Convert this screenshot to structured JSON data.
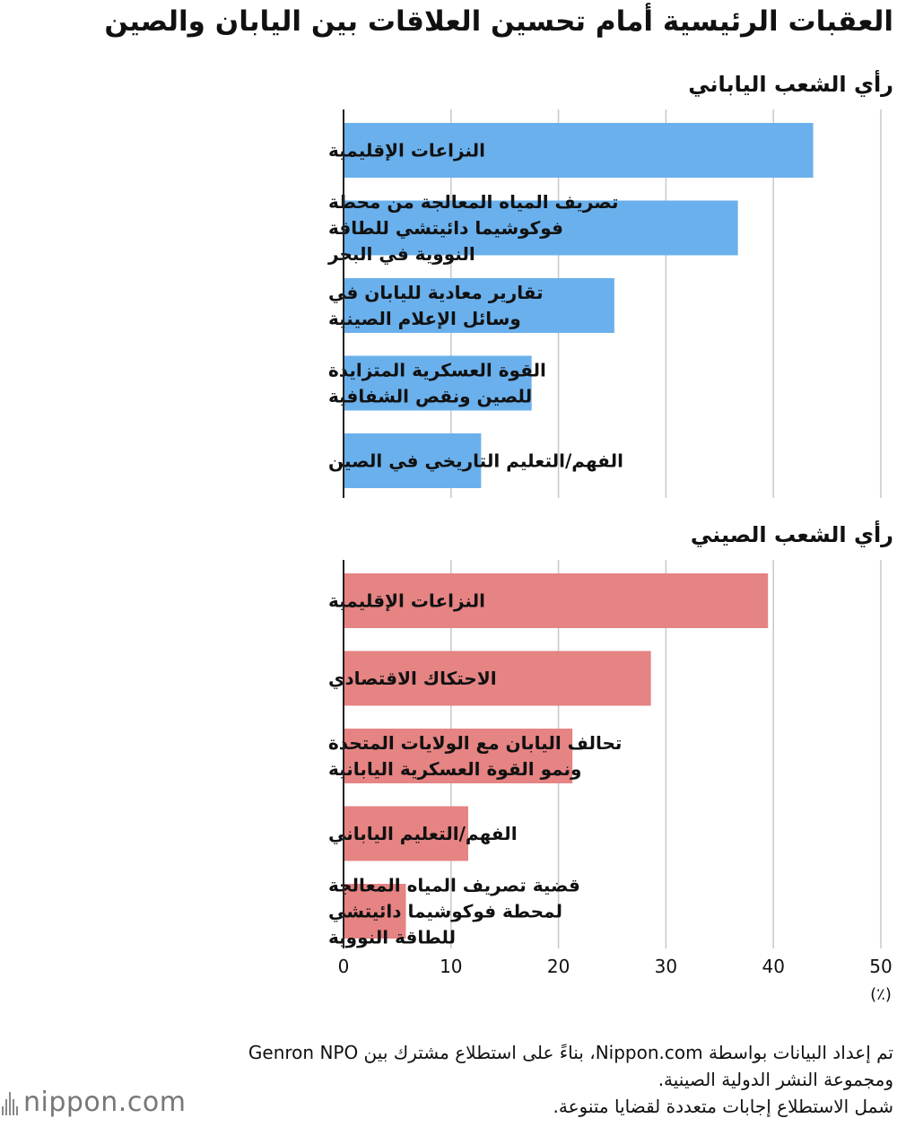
{
  "title": "العقبات الرئيسية أمام تحسين العلاقات بين اليابان والصين",
  "x_axis": {
    "ticks": [
      "0",
      "10",
      "20",
      "30",
      "40",
      "50"
    ],
    "unit": "(٪)"
  },
  "notes": [
    "تم إعداد البيانات بواسطة Nippon.com، بناءً على استطلاع مشترك بين Genron NPO ومجموعة النشر الدولية الصينية.",
    "شمل الاستطلاع إجابات متعددة لقضايا متنوعة."
  ],
  "logo": {
    "text": "nippon.com"
  },
  "colors": {
    "japan": "#6ab0ec",
    "china": "#e68383",
    "grid": "#c8c8c8",
    "axis": "#222222"
  },
  "chart_data": [
    {
      "type": "bar",
      "orientation": "horizontal",
      "subtitle": "رأي الشعب الياباني",
      "categories": [
        "النزاعات الإقليمية",
        "تصريف المياه المعالجة من محطة فوكوشيما دائيتشي للطاقة النووية في البحر",
        "تقارير معادية لليابان في وسائل الإعلام الصينية",
        "القوة العسكرية المتزايدة للصين ونقص الشفافية",
        "الفهم/التعليم التاريخي في الصين"
      ],
      "category_lines": [
        [
          "النزاعات الإقليمية"
        ],
        [
          "تصريف المياه المعالجة من محطة",
          "فوكوشيما دائيتشي للطاقة",
          "النووية  في البحر"
        ],
        [
          "تقارير معادية لليابان في",
          "وسائل الإعلام الصينية"
        ],
        [
          "القوة العسكرية المتزايدة",
          "للصين ونقص الشفافية"
        ],
        [
          "الفهم/التعليم التاريخي في الصين"
        ]
      ],
      "values": [
        43.7,
        36.7,
        25.2,
        17.5,
        12.8
      ],
      "xlim": [
        0,
        50
      ],
      "grid": true
    },
    {
      "type": "bar",
      "orientation": "horizontal",
      "subtitle": "رأي الشعب الصيني",
      "categories": [
        "النزاعات الإقليمية",
        "الاحتكاك الاقتصادي",
        "تحالف اليابان مع الولايات المتحدة ونمو القوة العسكرية اليابانية",
        "الفهم/التعليم الياباني",
        "قضية تصريف المياه المعالجة لمحطة فوكوشيما دائيتشي للطاقة النووية"
      ],
      "category_lines": [
        [
          "النزاعات الإقليمية"
        ],
        [
          "الاحتكاك الاقتصادي"
        ],
        [
          "تحالف اليابان مع الولايات المتحدة",
          "ونمو القوة العسكرية اليابانية"
        ],
        [
          "الفهم/التعليم الياباني"
        ],
        [
          "قضية تصريف المياه المعالجة",
          "لمحطة فوكوشيما دائيتشي",
          "للطاقة النووية"
        ]
      ],
      "values": [
        39.5,
        28.6,
        21.3,
        11.6,
        5.8
      ],
      "xlim": [
        0,
        50
      ],
      "grid": true
    }
  ]
}
